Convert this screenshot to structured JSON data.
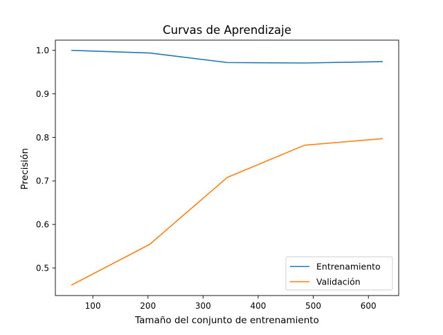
{
  "chart_data": {
    "type": "line",
    "title": "Curvas de Aprendizaje",
    "xlabel": "Tamaño del conjunto de entrenamiento",
    "ylabel": "Precisión",
    "xlim": [
      32,
      655
    ],
    "ylim": [
      0.4365,
      1.0235
    ],
    "x_ticks": [
      100,
      200,
      300,
      400,
      500,
      600
    ],
    "y_ticks": [
      0.5,
      0.6,
      0.7,
      0.8,
      0.9,
      1.0
    ],
    "x_tick_labels": [
      "100",
      "200",
      "300",
      "400",
      "500",
      "600"
    ],
    "y_tick_labels": [
      "0.5",
      "0.6",
      "0.7",
      "0.8",
      "0.9",
      "1.0"
    ],
    "grid": false,
    "legend_position": "bottom-right",
    "x": [
      62,
      203,
      344,
      484,
      625
    ],
    "series": [
      {
        "name": "Entrenamiento",
        "color": "#1f77b4",
        "values": [
          1.0,
          0.994,
          0.972,
          0.971,
          0.974
        ]
      },
      {
        "name": "Validación",
        "color": "#ff7f0e",
        "values": [
          0.461,
          0.554,
          0.708,
          0.782,
          0.797
        ]
      }
    ]
  }
}
